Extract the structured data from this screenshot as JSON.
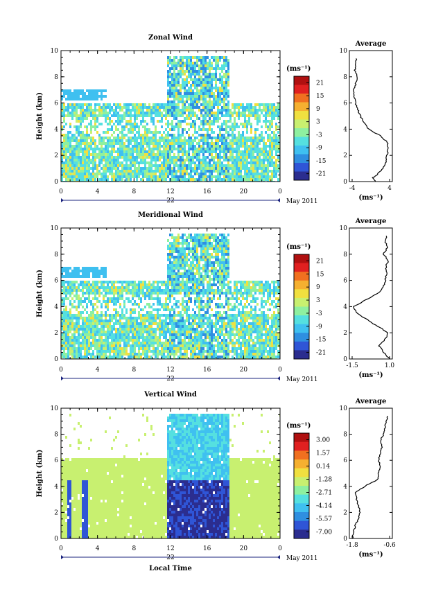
{
  "colorscale": [
    "#2b2d8f",
    "#2f55d6",
    "#2f8fe0",
    "#3fc0f0",
    "#55e0e0",
    "#8ef0a0",
    "#c8f070",
    "#f0e040",
    "#f5b030",
    "#f07020",
    "#e02020",
    "#b01010"
  ],
  "chart_data": [
    {
      "type": "heatmap",
      "title": "Zonal Wind",
      "ylabel": "Height (km)",
      "xlabel": "",
      "x_ticks": [
        "0",
        "4",
        "8",
        "12",
        "16",
        "20",
        "0"
      ],
      "y_ticks": [
        "0",
        "2",
        "4",
        "6",
        "8",
        "10"
      ],
      "date_label": "22",
      "month_label": "May 2011",
      "colorbar": {
        "unit": "(ms⁻¹)",
        "ticks": [
          "21",
          "15",
          "9",
          "3",
          "-3",
          "-9",
          "-15",
          "-21"
        ]
      },
      "average": {
        "title": "Average",
        "unit": "(ms⁻¹)",
        "x_ticks": [
          "-4",
          "4"
        ],
        "xlim": [
          -4,
          4
        ],
        "y_ticks": [
          "0",
          "2",
          "4",
          "6",
          "8",
          "10"
        ],
        "profile": [
          [
            0.0,
            1.0
          ],
          [
            0.3,
            0.5
          ],
          [
            0.6,
            1.5
          ],
          [
            1.0,
            2.6
          ],
          [
            1.5,
            3.2
          ],
          [
            2.0,
            3.5
          ],
          [
            2.5,
            3.6
          ],
          [
            3.0,
            3.5
          ],
          [
            3.5,
            2.0
          ],
          [
            4.0,
            -0.5
          ],
          [
            4.5,
            -1.5
          ],
          [
            5.0,
            -2.2
          ],
          [
            5.5,
            -2.8
          ],
          [
            6.0,
            -3.3
          ],
          [
            6.5,
            -3.5
          ],
          [
            7.0,
            -3.6
          ],
          [
            7.5,
            -3.2
          ],
          [
            8.0,
            -3.0
          ],
          [
            8.5,
            -3.4
          ],
          [
            9.0,
            -3.2
          ],
          [
            9.5,
            -3.0
          ]
        ]
      }
    },
    {
      "type": "heatmap",
      "title": "Meridional Wind",
      "ylabel": "Height (km)",
      "xlabel": "",
      "x_ticks": [
        "0",
        "4",
        "8",
        "12",
        "16",
        "20",
        "0"
      ],
      "y_ticks": [
        "0",
        "2",
        "4",
        "6",
        "8",
        "10"
      ],
      "date_label": "22",
      "month_label": "May 2011",
      "colorbar": {
        "unit": "(ms⁻¹)",
        "ticks": [
          "21",
          "15",
          "9",
          "3",
          "-3",
          "-9",
          "-15",
          "-21"
        ]
      },
      "average": {
        "title": "Average",
        "unit": "(ms⁻¹)",
        "x_ticks": [
          "-1.5",
          "1.0"
        ],
        "xlim": [
          -1.5,
          1.0
        ],
        "y_ticks": [
          "0",
          "2",
          "4",
          "6",
          "8",
          "10"
        ],
        "profile": [
          [
            0.0,
            1.0
          ],
          [
            0.5,
            0.6
          ],
          [
            1.0,
            0.3
          ],
          [
            1.5,
            0.7
          ],
          [
            2.0,
            0.9
          ],
          [
            2.5,
            0.2
          ],
          [
            3.0,
            -0.5
          ],
          [
            3.5,
            -1.2
          ],
          [
            4.0,
            -1.4
          ],
          [
            4.5,
            -0.6
          ],
          [
            5.0,
            0.2
          ],
          [
            5.5,
            0.6
          ],
          [
            6.0,
            0.7
          ],
          [
            6.5,
            0.8
          ],
          [
            7.0,
            0.75
          ],
          [
            7.5,
            0.9
          ],
          [
            8.0,
            0.6
          ],
          [
            8.5,
            0.85
          ],
          [
            9.0,
            0.7
          ],
          [
            9.5,
            0.8
          ]
        ]
      }
    },
    {
      "type": "heatmap",
      "title": "Vertical Wind",
      "ylabel": "Height (km)",
      "xlabel": "Local Time",
      "x_ticks": [
        "0",
        "4",
        "8",
        "12",
        "16",
        "20",
        "0"
      ],
      "y_ticks": [
        "0",
        "2",
        "4",
        "6",
        "8",
        "10"
      ],
      "date_label": "22",
      "month_label": "May 2011",
      "colorbar": {
        "unit": "(ms⁻¹)",
        "ticks": [
          "3.00",
          "1.57",
          "0.14",
          "-1.28",
          "-2.71",
          "-4.14",
          "-5.57",
          "-7.00"
        ]
      },
      "average": {
        "title": "Average",
        "unit": "(ms⁻¹)",
        "x_ticks": [
          "-1.8",
          "-0.6"
        ],
        "xlim": [
          -1.8,
          -0.6
        ],
        "y_ticks": [
          "0",
          "2",
          "4",
          "6",
          "8",
          "10"
        ],
        "profile": [
          [
            0.0,
            -1.8
          ],
          [
            0.5,
            -1.75
          ],
          [
            1.0,
            -1.7
          ],
          [
            1.5,
            -1.6
          ],
          [
            2.0,
            -1.55
          ],
          [
            2.5,
            -1.6
          ],
          [
            3.0,
            -1.65
          ],
          [
            3.5,
            -1.7
          ],
          [
            4.0,
            -1.4
          ],
          [
            4.5,
            -1.0
          ],
          [
            5.0,
            -0.95
          ],
          [
            5.5,
            -0.9
          ],
          [
            6.0,
            -0.95
          ],
          [
            6.5,
            -0.9
          ],
          [
            7.0,
            -0.85
          ],
          [
            7.5,
            -0.9
          ],
          [
            8.0,
            -0.8
          ],
          [
            8.5,
            -0.75
          ],
          [
            9.0,
            -0.7
          ],
          [
            9.5,
            -0.65
          ]
        ]
      }
    }
  ]
}
